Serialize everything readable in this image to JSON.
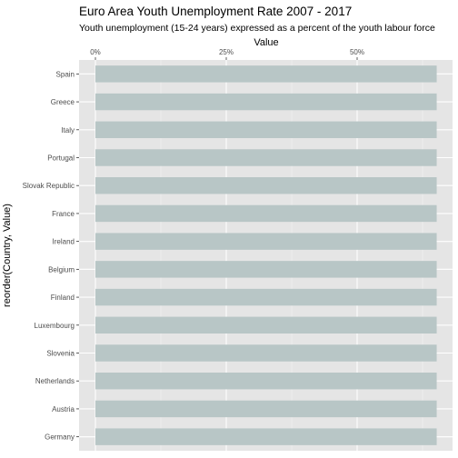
{
  "chart_data": {
    "type": "bar",
    "orientation": "horizontal",
    "title": "Euro Area Youth Unemployment Rate 2007 - 2017",
    "subtitle": "Youth unemployment (15-24 years) expressed as a percent of the youth labour force",
    "xlabel": "Value",
    "ylabel": "reorder(Country, Value)",
    "x_axis_position": "top",
    "xlim": [
      0,
      0.69
    ],
    "xticks": [
      0,
      0.25,
      0.5
    ],
    "xtick_labels": [
      "0%",
      "25%",
      "50%"
    ],
    "categories": [
      "Spain",
      "Greece",
      "Italy",
      "Portugal",
      "Slovak Republic",
      "France",
      "Ireland",
      "Belgium",
      "Finland",
      "Luxembourg",
      "Slovenia",
      "Netherlands",
      "Austria",
      "Germany"
    ],
    "values": [
      0.652,
      0.652,
      0.652,
      0.652,
      0.652,
      0.652,
      0.652,
      0.652,
      0.652,
      0.652,
      0.652,
      0.652,
      0.652,
      0.652
    ],
    "bar_color": "#b8c6c6",
    "panel_color": "#e5e5e5",
    "grid": true
  }
}
